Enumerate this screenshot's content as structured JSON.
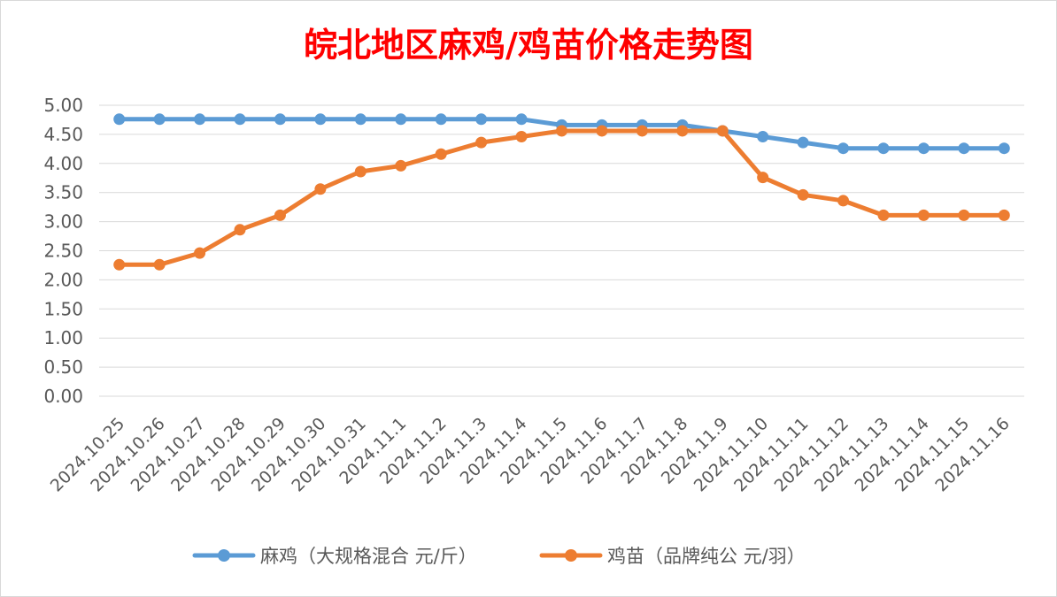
{
  "chart_data": {
    "type": "line",
    "title": "皖北地区麻鸡/鸡苗价格走势图",
    "title_color": "#ff0000",
    "xlabel": "",
    "ylabel": "",
    "ylim": [
      0,
      5
    ],
    "y_ticks": [
      "0.00",
      "0.50",
      "1.00",
      "1.50",
      "2.00",
      "2.50",
      "3.00",
      "3.50",
      "4.00",
      "4.50",
      "5.00"
    ],
    "grid": true,
    "legend_position": "bottom",
    "categories": [
      "2024.10.25",
      "2024.10.26",
      "2024.10.27",
      "2024.10.28",
      "2024.10.29",
      "2024.10.30",
      "2024.10.31",
      "2024.11.1",
      "2024.11.2",
      "2024.11.3",
      "2024.11.4",
      "2024.11.5",
      "2024.11.6",
      "2024.11.7",
      "2024.11.8",
      "2024.11.9",
      "2024.11.10",
      "2024.11.11",
      "2024.11.12",
      "2024.11.13",
      "2024.11.14",
      "2024.11.15",
      "2024.11.16"
    ],
    "series": [
      {
        "name": "麻鸡（大规格混合 元/斤）",
        "color": "#5b9bd5",
        "values": [
          4.76,
          4.76,
          4.76,
          4.76,
          4.76,
          4.76,
          4.76,
          4.76,
          4.76,
          4.76,
          4.76,
          4.66,
          4.66,
          4.66,
          4.66,
          4.56,
          4.46,
          4.36,
          4.26,
          4.26,
          4.26,
          4.26,
          4.26
        ]
      },
      {
        "name": "鸡苗（品牌纯公 元/羽）",
        "color": "#ed7d31",
        "values": [
          2.26,
          2.26,
          2.46,
          2.86,
          3.11,
          3.56,
          3.86,
          3.96,
          4.16,
          4.36,
          4.46,
          4.56,
          4.56,
          4.56,
          4.56,
          4.56,
          3.76,
          3.46,
          3.36,
          3.11,
          3.11,
          3.11,
          3.11
        ]
      }
    ]
  }
}
